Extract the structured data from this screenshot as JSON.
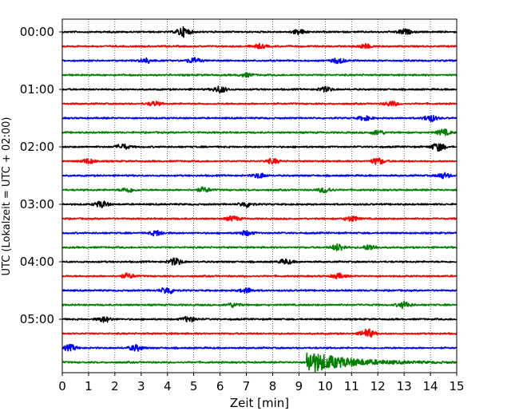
{
  "chart_data": {
    "type": "line",
    "title": "",
    "xlabel": "Zeit  [min]",
    "ylabel": "UTC (Lokalzeit = UTC + 02:00)",
    "xlim": [
      0,
      15
    ],
    "x_ticks": [
      "0",
      "1",
      "2",
      "3",
      "4",
      "5",
      "6",
      "7",
      "8",
      "9",
      "10",
      "11",
      "12",
      "13",
      "14",
      "15"
    ],
    "y_tick_labels": [
      "00:00",
      "01:00",
      "02:00",
      "03:00",
      "04:00",
      "05:00"
    ],
    "grid": "vertical dotted at each minute",
    "trace_interval_min": 15,
    "trace_count": 24,
    "trace_colors": [
      "#000000",
      "#ff0000",
      "#0000ff",
      "#008000"
    ],
    "series": [
      {
        "label": "00:00",
        "color": "#000000",
        "bursts": [
          [
            4.6,
            0.8
          ],
          [
            9.0,
            0.4
          ],
          [
            13.0,
            0.45
          ]
        ]
      },
      {
        "label": "00:15",
        "color": "#ff0000",
        "bursts": [
          [
            7.5,
            0.35
          ],
          [
            11.5,
            0.35
          ]
        ]
      },
      {
        "label": "00:30",
        "color": "#0000ff",
        "bursts": [
          [
            3.2,
            0.4
          ],
          [
            5.0,
            0.45
          ],
          [
            10.5,
            0.45
          ]
        ]
      },
      {
        "label": "00:45",
        "color": "#008000",
        "bursts": [
          [
            7.0,
            0.3
          ]
        ]
      },
      {
        "label": "01:00",
        "color": "#000000",
        "bursts": [
          [
            6.0,
            0.55
          ],
          [
            10.0,
            0.4
          ]
        ]
      },
      {
        "label": "01:15",
        "color": "#ff0000",
        "bursts": [
          [
            3.5,
            0.35
          ],
          [
            12.5,
            0.4
          ]
        ]
      },
      {
        "label": "01:30",
        "color": "#0000ff",
        "bursts": [
          [
            14.0,
            0.55
          ],
          [
            11.5,
            0.35
          ]
        ]
      },
      {
        "label": "01:45",
        "color": "#008000",
        "bursts": [
          [
            12.0,
            0.4
          ],
          [
            14.5,
            0.5
          ]
        ]
      },
      {
        "label": "02:00",
        "color": "#000000",
        "bursts": [
          [
            2.3,
            0.45
          ],
          [
            14.3,
            0.7
          ]
        ]
      },
      {
        "label": "02:15",
        "color": "#ff0000",
        "bursts": [
          [
            1.0,
            0.4
          ],
          [
            8.0,
            0.4
          ],
          [
            12.0,
            0.55
          ]
        ]
      },
      {
        "label": "02:30",
        "color": "#0000ff",
        "bursts": [
          [
            7.5,
            0.4
          ],
          [
            14.5,
            0.45
          ]
        ]
      },
      {
        "label": "02:45",
        "color": "#008000",
        "bursts": [
          [
            2.5,
            0.4
          ],
          [
            5.4,
            0.4
          ],
          [
            10.0,
            0.45
          ]
        ]
      },
      {
        "label": "03:00",
        "color": "#000000",
        "bursts": [
          [
            1.5,
            0.55
          ],
          [
            7.0,
            0.45
          ]
        ]
      },
      {
        "label": "03:15",
        "color": "#ff0000",
        "bursts": [
          [
            6.5,
            0.4
          ],
          [
            11.0,
            0.45
          ]
        ]
      },
      {
        "label": "03:30",
        "color": "#0000ff",
        "bursts": [
          [
            3.6,
            0.45
          ],
          [
            7.0,
            0.4
          ]
        ]
      },
      {
        "label": "03:45",
        "color": "#008000",
        "bursts": [
          [
            10.5,
            0.6
          ],
          [
            11.7,
            0.45
          ]
        ]
      },
      {
        "label": "04:00",
        "color": "#000000",
        "bursts": [
          [
            4.3,
            0.6
          ],
          [
            8.5,
            0.4
          ]
        ]
      },
      {
        "label": "04:15",
        "color": "#ff0000",
        "bursts": [
          [
            2.5,
            0.4
          ],
          [
            10.5,
            0.4
          ]
        ]
      },
      {
        "label": "04:30",
        "color": "#0000ff",
        "bursts": [
          [
            4.0,
            0.6
          ],
          [
            7.0,
            0.4
          ]
        ]
      },
      {
        "label": "04:45",
        "color": "#008000",
        "bursts": [
          [
            13.0,
            0.55
          ],
          [
            6.5,
            0.35
          ]
        ]
      },
      {
        "label": "05:00",
        "color": "#000000",
        "bursts": [
          [
            1.6,
            0.45
          ],
          [
            4.8,
            0.45
          ]
        ]
      },
      {
        "label": "05:15",
        "color": "#ff0000",
        "bursts": [
          [
            11.6,
            0.75
          ]
        ]
      },
      {
        "label": "05:30",
        "color": "#0000ff",
        "bursts": [
          [
            0.3,
            0.5
          ],
          [
            2.8,
            0.5
          ]
        ]
      },
      {
        "label": "05:45",
        "color": "#008000",
        "bursts": [
          [
            9.3,
            1.6
          ]
        ],
        "event_onset_min": 9.3
      }
    ]
  }
}
